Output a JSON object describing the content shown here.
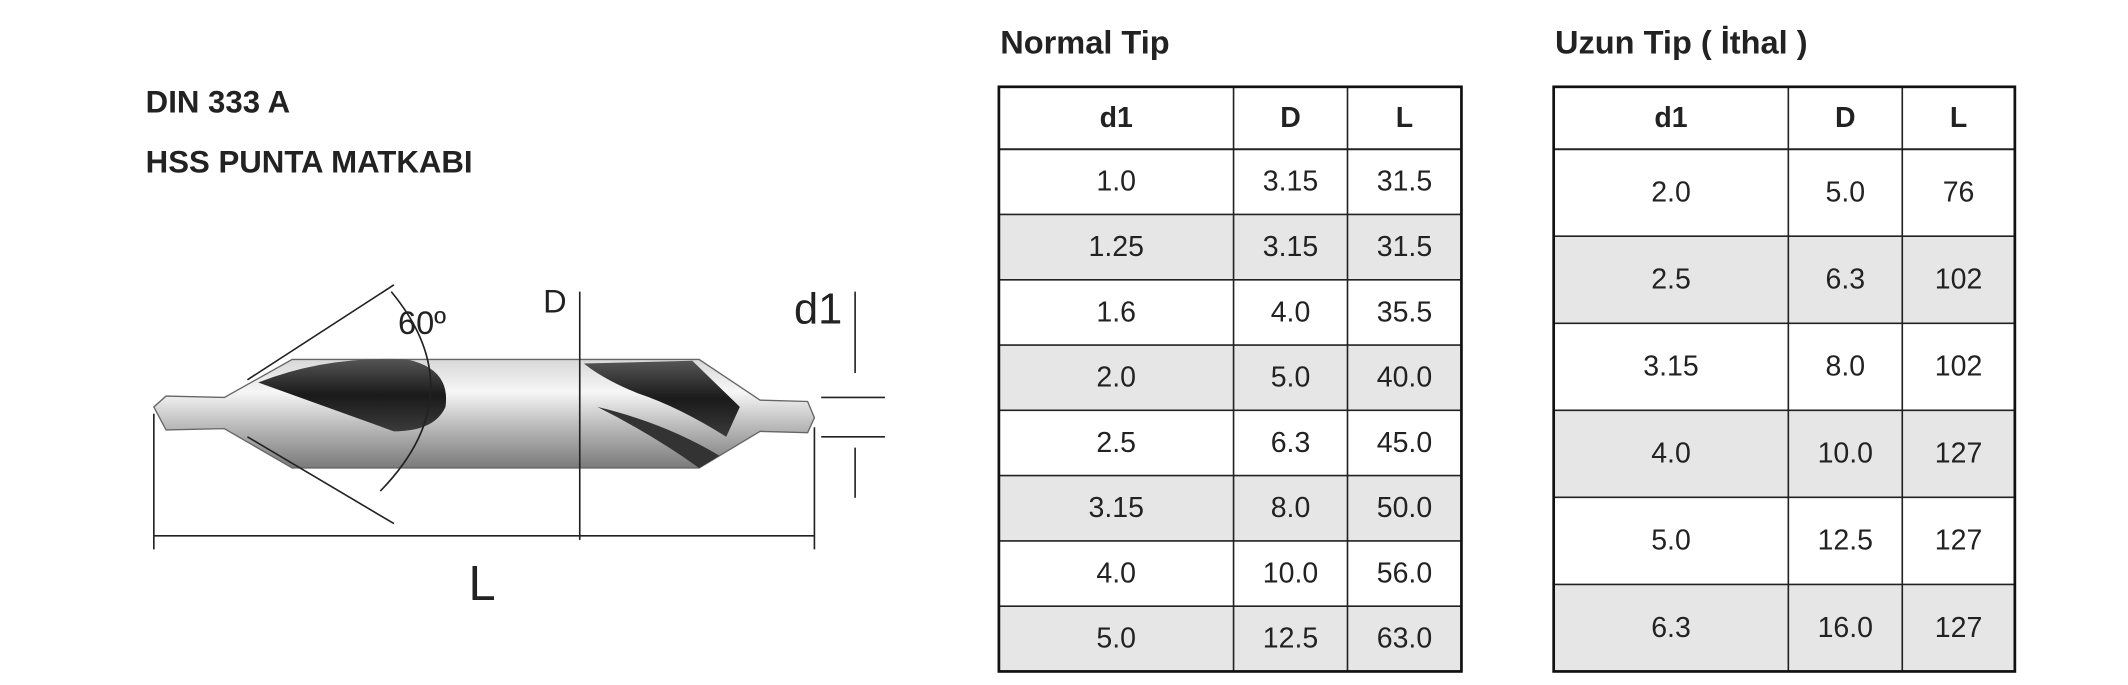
{
  "header": {
    "line1": "DIN 333 A",
    "line2": "HSS PUNTA MATKABI"
  },
  "drawing": {
    "angle": "60º",
    "diameter": "D",
    "tip_diameter": "d1",
    "length": "L"
  },
  "tables": [
    {
      "title": "Normal Tip",
      "columns": [
        "d1",
        "D",
        "L"
      ],
      "rows": [
        [
          "1.0",
          "3.15",
          "31.5"
        ],
        [
          "1.25",
          "3.15",
          "31.5"
        ],
        [
          "1.6",
          "4.0",
          "35.5"
        ],
        [
          "2.0",
          "5.0",
          "40.0"
        ],
        [
          "2.5",
          "6.3",
          "45.0"
        ],
        [
          "3.15",
          "8.0",
          "50.0"
        ],
        [
          "4.0",
          "10.0",
          "56.0"
        ],
        [
          "5.0",
          "12.5",
          "63.0"
        ]
      ]
    },
    {
      "title": "Uzun Tip ( İthal )",
      "columns": [
        "d1",
        "D",
        "L"
      ],
      "rows": [
        [
          "2.0",
          "5.0",
          "76"
        ],
        [
          "2.5",
          "6.3",
          "102"
        ],
        [
          "3.15",
          "8.0",
          "102"
        ],
        [
          "4.0",
          "10.0",
          "127"
        ],
        [
          "5.0",
          "12.5",
          "127"
        ],
        [
          "6.3",
          "16.0",
          "127"
        ]
      ]
    }
  ]
}
